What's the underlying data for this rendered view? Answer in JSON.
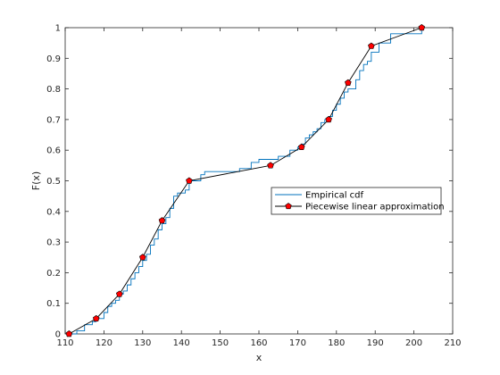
{
  "chart_data": {
    "type": "line",
    "xlabel": "x",
    "ylabel": "F(x)",
    "xlim": [
      110,
      210
    ],
    "ylim": [
      0,
      1
    ],
    "xticks": [
      110,
      120,
      130,
      140,
      150,
      160,
      170,
      180,
      190,
      200,
      210
    ],
    "yticks": [
      0,
      0.1,
      0.2,
      0.3,
      0.4,
      0.5,
      0.6,
      0.7,
      0.8,
      0.9,
      1
    ],
    "grid": false,
    "legend_position": "center-right",
    "series": [
      {
        "name": "Empirical cdf",
        "style": "stairs",
        "color": "#0072BD",
        "x": [
          111,
          113,
          115,
          117,
          118,
          120,
          121,
          122,
          123,
          124,
          125,
          126,
          127,
          128,
          129,
          130,
          131,
          132,
          133,
          134,
          135,
          136,
          137,
          138,
          139,
          141,
          142,
          145,
          146,
          150,
          155,
          158,
          160,
          163,
          165,
          168,
          170,
          171,
          172,
          173,
          174,
          175,
          176,
          177,
          178,
          179,
          180,
          181,
          182,
          183,
          185,
          186,
          187,
          188,
          189,
          191,
          194,
          202
        ],
        "y": [
          0.0,
          0.01,
          0.03,
          0.04,
          0.05,
          0.07,
          0.09,
          0.1,
          0.11,
          0.13,
          0.14,
          0.16,
          0.18,
          0.2,
          0.22,
          0.24,
          0.26,
          0.29,
          0.31,
          0.34,
          0.36,
          0.38,
          0.41,
          0.45,
          0.46,
          0.47,
          0.5,
          0.52,
          0.53,
          0.53,
          0.54,
          0.56,
          0.57,
          0.57,
          0.58,
          0.6,
          0.61,
          0.62,
          0.64,
          0.65,
          0.66,
          0.67,
          0.69,
          0.7,
          0.71,
          0.73,
          0.75,
          0.77,
          0.79,
          0.8,
          0.83,
          0.86,
          0.88,
          0.89,
          0.92,
          0.95,
          0.98,
          1.0
        ]
      },
      {
        "name": "Piecewise linear approximation",
        "style": "line-markers",
        "color": "#000000",
        "marker_color": "#FF0000",
        "x": [
          111,
          118,
          124,
          130,
          135,
          142,
          163,
          171,
          178,
          183,
          189,
          202
        ],
        "y": [
          0.0,
          0.05,
          0.13,
          0.25,
          0.37,
          0.5,
          0.55,
          0.61,
          0.7,
          0.82,
          0.94,
          1.0
        ]
      }
    ]
  }
}
